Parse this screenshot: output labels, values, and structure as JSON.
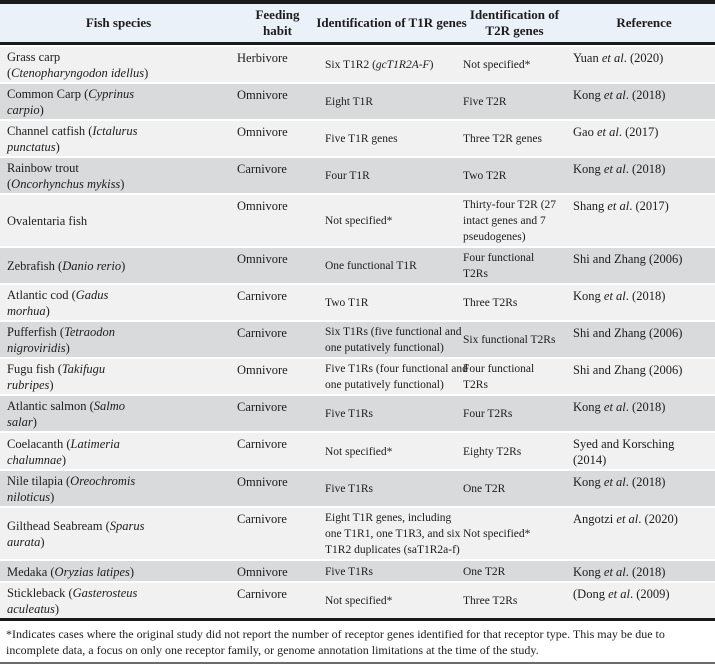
{
  "colors": {
    "border": "#1a1a1a",
    "header_bg": "#eaf1f8",
    "row_light": "#f1f1f2",
    "row_dark": "#d9dadb",
    "text": "#1c1c1c"
  },
  "header": {
    "columns": [
      {
        "key": "species",
        "lines": [
          [
            "Fish species"
          ]
        ]
      },
      {
        "key": "feeding",
        "lines": [
          [
            "Feeding"
          ],
          [
            "habit"
          ]
        ]
      },
      {
        "key": "t1r",
        "lines": [
          [
            "Identification of T1R genes"
          ]
        ]
      },
      {
        "key": "t2r",
        "lines": [
          [
            "Identification of"
          ],
          [
            "T2R genes"
          ]
        ]
      },
      {
        "key": "ref",
        "lines": [
          [
            "Reference"
          ]
        ]
      }
    ]
  },
  "rows": [
    {
      "species": [
        [
          "Grass carp"
        ],
        [
          "(",
          {
            "t": "Ctenopharyngodon idellus",
            "i": true
          },
          ")"
        ]
      ],
      "feeding": "Herbivore",
      "t1r": [
        [
          "Six T1R2 (",
          {
            "t": "gcT1R2A-F",
            "i": true
          },
          ")"
        ]
      ],
      "t2r": [
        [
          "Not specified*"
        ]
      ],
      "ref": [
        [
          "Yuan ",
          {
            "t": "et al",
            "i": true
          },
          ". (2020)"
        ]
      ]
    },
    {
      "species": [
        [
          "Common Carp (",
          {
            "t": "Cyprinus",
            "i": true
          }
        ],
        [
          {
            "t": "carpio",
            "i": true
          },
          ")"
        ]
      ],
      "feeding": "Omnivore",
      "t1r": [
        [
          "Eight T1R"
        ]
      ],
      "t2r": [
        [
          "Five T2R"
        ]
      ],
      "ref": [
        [
          "Kong ",
          {
            "t": "et al",
            "i": true
          },
          ". (2018)"
        ]
      ]
    },
    {
      "species": [
        [
          "Channel catfish (",
          {
            "t": "Ictalurus",
            "i": true
          }
        ],
        [
          {
            "t": "punctatus",
            "i": true
          },
          ")"
        ]
      ],
      "feeding": "Omnivore",
      "t1r": [
        [
          "Five T1R genes"
        ]
      ],
      "t2r": [
        [
          "Three T2R genes"
        ]
      ],
      "ref": [
        [
          "Gao ",
          {
            "t": "et al",
            "i": true
          },
          ". (2017)"
        ]
      ]
    },
    {
      "species": [
        [
          "Rainbow trout"
        ],
        [
          "(",
          {
            "t": "Oncorhynchus mykiss",
            "i": true
          },
          ")"
        ]
      ],
      "feeding": "Carnivore",
      "t1r": [
        [
          "Four T1R"
        ]
      ],
      "t2r": [
        [
          "Two T2R"
        ]
      ],
      "ref": [
        [
          "Kong ",
          {
            "t": "et al",
            "i": true
          },
          ". (2018)"
        ]
      ]
    },
    {
      "species": [
        [
          "Ovalentaria fish"
        ]
      ],
      "feeding": "Omnivore",
      "t1r": [
        [
          "Not specified*"
        ]
      ],
      "t2r": [
        [
          "Thirty-four T2R (27"
        ],
        [
          "intact genes and 7"
        ],
        [
          "pseudogenes)"
        ]
      ],
      "ref": [
        [
          "Shang ",
          {
            "t": "et al",
            "i": true
          },
          ". (2017)"
        ]
      ]
    },
    {
      "species": [
        [
          "Zebrafish (",
          {
            "t": "Danio rerio",
            "i": true
          },
          ")"
        ]
      ],
      "feeding": "Omnivore",
      "t1r": [
        [
          "One functional T1R"
        ]
      ],
      "t2r": [
        [
          "Four functional"
        ],
        [
          "T2Rs"
        ]
      ],
      "ref": [
        [
          "Shi and Zhang (2006)"
        ]
      ]
    },
    {
      "species": [
        [
          "Atlantic cod (",
          {
            "t": "Gadus",
            "i": true
          }
        ],
        [
          {
            "t": "morhua",
            "i": true
          },
          ")"
        ]
      ],
      "feeding": "Carnivore",
      "t1r": [
        [
          "Two T1R"
        ]
      ],
      "t2r": [
        [
          "Three T2Rs"
        ]
      ],
      "ref": [
        [
          "Kong ",
          {
            "t": "et al",
            "i": true
          },
          ". (2018)"
        ]
      ]
    },
    {
      "species": [
        [
          "Pufferfish (",
          {
            "t": "Tetraodon",
            "i": true
          }
        ],
        [
          {
            "t": "nigroviridis",
            "i": true
          },
          ")"
        ]
      ],
      "feeding": "Carnivore",
      "t1r": [
        [
          "Six T1Rs (five functional and"
        ],
        [
          "one putatively functional)"
        ]
      ],
      "t2r": [
        [
          "Six functional T2Rs"
        ]
      ],
      "ref": [
        [
          "Shi and Zhang (2006)"
        ]
      ]
    },
    {
      "species": [
        [
          "Fugu fish (",
          {
            "t": "Takifugu",
            "i": true
          }
        ],
        [
          {
            "t": "rubripes",
            "i": true
          },
          ")"
        ]
      ],
      "feeding": "Omnivore",
      "t1r": [
        [
          "Five T1Rs (four functional and"
        ],
        [
          "one putatively functional)"
        ]
      ],
      "t2r": [
        [
          "Four functional"
        ],
        [
          "T2Rs"
        ]
      ],
      "ref": [
        [
          "Shi and Zhang (2006)"
        ]
      ]
    },
    {
      "species": [
        [
          "Atlantic salmon (",
          {
            "t": "Salmo",
            "i": true
          }
        ],
        [
          {
            "t": "salar",
            "i": true
          },
          ")"
        ]
      ],
      "feeding": "Carnivore",
      "t1r": [
        [
          "Five T1Rs"
        ]
      ],
      "t2r": [
        [
          "Four T2Rs"
        ]
      ],
      "ref": [
        [
          "Kong ",
          {
            "t": "et al",
            "i": true
          },
          ". (2018)"
        ]
      ]
    },
    {
      "species": [
        [
          "Coelacanth (",
          {
            "t": "Latimeria",
            "i": true
          }
        ],
        [
          {
            "t": "chalumnae",
            "i": true
          },
          ")"
        ]
      ],
      "feeding": "Carnivore",
      "t1r": [
        [
          "Not specified*"
        ]
      ],
      "t2r": [
        [
          "Eighty T2Rs"
        ]
      ],
      "ref": [
        [
          "Syed and Korsching"
        ],
        [
          "(2014)"
        ]
      ]
    },
    {
      "species": [
        [
          "Nile tilapia (",
          {
            "t": "Oreochromis",
            "i": true
          }
        ],
        [
          {
            "t": "niloticus",
            "i": true
          },
          ")"
        ]
      ],
      "feeding": "Omnivore",
      "t1r": [
        [
          "Five T1Rs"
        ]
      ],
      "t2r": [
        [
          "One T2R"
        ]
      ],
      "ref": [
        [
          "Kong ",
          {
            "t": "et al",
            "i": true
          },
          ". (2018)"
        ]
      ]
    },
    {
      "species": [
        [
          "Gilthead Seabream (",
          {
            "t": "Sparus",
            "i": true
          }
        ],
        [
          {
            "t": "aurata",
            "i": true
          },
          ")"
        ]
      ],
      "feeding": "Carnivore",
      "t1r": [
        [
          "Eight T1R genes, including"
        ],
        [
          "one T1R1, one T1R3, and six"
        ],
        [
          "T1R2 duplicates (saT1R2a-f)"
        ]
      ],
      "t2r": [
        [
          "Not specified*"
        ]
      ],
      "ref": [
        [
          "Angotzi ",
          {
            "t": "et al",
            "i": true
          },
          ". (2020)"
        ]
      ]
    },
    {
      "species": [
        [
          "Medaka (",
          {
            "t": "Oryzias latipes",
            "i": true
          },
          ")"
        ]
      ],
      "feeding": "Omnivore",
      "t1r": [
        [
          "Five T1Rs"
        ]
      ],
      "t2r": [
        [
          "One T2R"
        ]
      ],
      "ref": [
        [
          "Kong ",
          {
            "t": "et al",
            "i": true
          },
          ". (2018)"
        ]
      ]
    },
    {
      "species": [
        [
          "Stickleback (",
          {
            "t": "Gasterosteus",
            "i": true
          }
        ],
        [
          {
            "t": "aculeatus",
            "i": true
          },
          ")"
        ]
      ],
      "feeding": "Carnivore",
      "t1r": [
        [
          "Not specified*"
        ]
      ],
      "t2r": [
        [
          "Three T2Rs"
        ]
      ],
      "ref": [
        [
          "(Dong ",
          {
            "t": "et al",
            "i": true
          },
          ". (2009)"
        ]
      ]
    }
  ],
  "footnote": "*Indicates cases where the original study did not report the number of receptor genes identified for that receptor type. This may be due to incomplete data, a focus on only one receptor family, or genome annotation limitations at the time of the study."
}
